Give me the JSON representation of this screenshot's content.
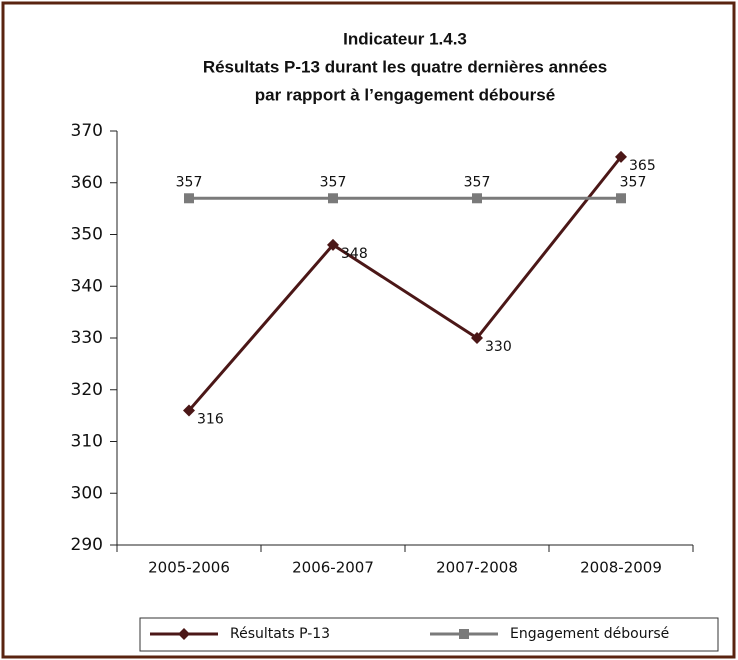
{
  "chart_data": {
    "type": "line",
    "title": [
      "Indicateur 1.4.3",
      "Résultats P-13 durant les quatre dernières années",
      "par rapport à l’engagement déboursé"
    ],
    "categories": [
      "2005-2006",
      "2006-2007",
      "2007-2008",
      "2008-2009"
    ],
    "series": [
      {
        "name": "Résultats P-13",
        "color": "#4b1717",
        "marker": "diamond",
        "values": [
          316,
          348,
          330,
          365
        ]
      },
      {
        "name": "Engagement déboursé",
        "color": "#7a7a7a",
        "marker": "square",
        "values": [
          357,
          357,
          357,
          357
        ]
      }
    ],
    "ylim": [
      290,
      370
    ],
    "yticks": [
      290,
      300,
      310,
      320,
      330,
      340,
      350,
      360,
      370
    ],
    "legend": "bottom"
  }
}
